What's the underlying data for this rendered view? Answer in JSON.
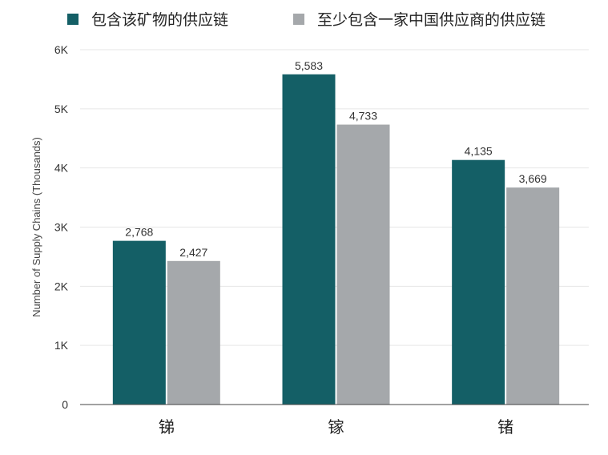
{
  "chart_data": {
    "type": "bar",
    "categories": [
      "锑",
      "镓",
      "锗"
    ],
    "series": [
      {
        "name": "包含该矿物的供应链",
        "values": [
          2768,
          5583,
          4135
        ],
        "color": "#145f66"
      },
      {
        "name": "至少包含一家中国供应商的供应链",
        "values": [
          2427,
          4733,
          3669
        ],
        "color": "#a5a8ab"
      }
    ],
    "data_labels": [
      [
        "2,768",
        "2,427"
      ],
      [
        "5,583",
        "4,733"
      ],
      [
        "4,135",
        "3,669"
      ]
    ],
    "ylabel": "Number of Supply Chains (Thousands)",
    "ylim": [
      0,
      6000
    ],
    "yticks": [
      0,
      1000,
      2000,
      3000,
      4000,
      5000,
      6000
    ],
    "ytick_labels": [
      "0",
      "1K",
      "2K",
      "3K",
      "4K",
      "5K",
      "6K"
    ],
    "grid": true,
    "legend_position": "top"
  }
}
